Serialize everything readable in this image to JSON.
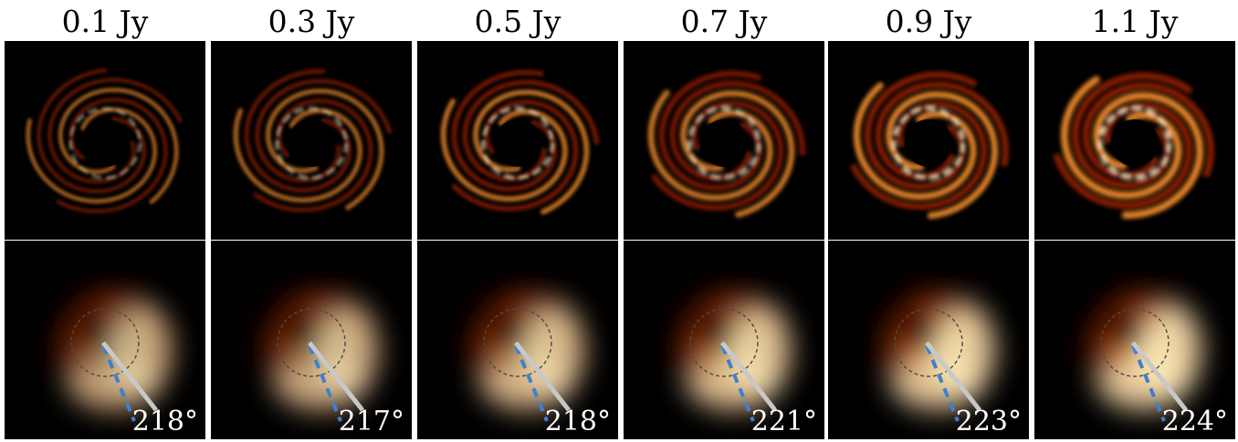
{
  "columns": [
    {
      "flux_label": "0.1 Jy",
      "angle_label": "218°",
      "brightness": 0.35,
      "ring_brightness": 0.55
    },
    {
      "flux_label": "0.3 Jy",
      "angle_label": "217°",
      "brightness": 0.45,
      "ring_brightness": 0.62
    },
    {
      "flux_label": "0.5 Jy",
      "angle_label": "218°",
      "brightness": 0.6,
      "ring_brightness": 0.72
    },
    {
      "flux_label": "0.7 Jy",
      "angle_label": "221°",
      "brightness": 0.72,
      "ring_brightness": 0.82
    },
    {
      "flux_label": "0.9 Jy",
      "angle_label": "223°",
      "brightness": 0.85,
      "ring_brightness": 0.92
    },
    {
      "flux_label": "1.1 Jy",
      "angle_label": "224°",
      "brightness": 0.95,
      "ring_brightness": 1.0
    }
  ],
  "colors": {
    "background": "#000000",
    "emission_hot": "#fff3c4",
    "emission_mid": "#f08a2a",
    "emission_cool": "#8a1c06",
    "solid_line": "#c8c8c8",
    "dashed_line": "#3f7fd0",
    "dashed_circle": "#4a4a4a"
  }
}
